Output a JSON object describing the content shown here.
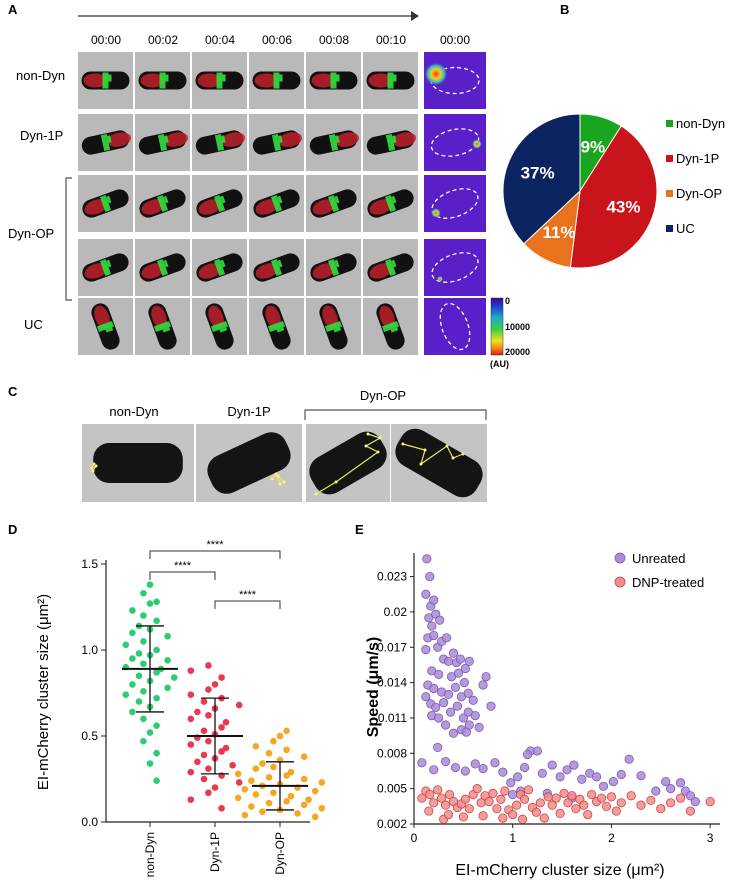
{
  "panels": {
    "a": "A",
    "b": "B",
    "c": "C",
    "d": "D",
    "e": "E"
  },
  "panel_a": {
    "timepoints": [
      "00:00",
      "00:02",
      "00:04",
      "00:06",
      "00:08",
      "00:10"
    ],
    "heatmap_time": "00:00",
    "rows": [
      "non-Dyn",
      "Dyn-1P",
      "Dyn-OP",
      "UC"
    ],
    "colorbar_ticks": [
      "0",
      "10000",
      "20000"
    ],
    "colorbar_unit": "(AU)"
  },
  "panel_c": {
    "labels": [
      "non-Dyn",
      "Dyn-1P",
      "Dyn-OP"
    ]
  },
  "chart_data": [
    {
      "type": "pie",
      "id": "B",
      "slices": [
        {
          "label": "non-Dyn",
          "value": 9,
          "text": "9%",
          "color": "#1aa51f"
        },
        {
          "label": "Dyn-1P",
          "value": 43,
          "text": "43%",
          "color": "#c8141a"
        },
        {
          "label": "Dyn-OP",
          "value": 11,
          "text": "11%",
          "color": "#e8731c"
        },
        {
          "label": "UC",
          "value": 37,
          "text": "37%",
          "color": "#0b2361"
        }
      ]
    },
    {
      "type": "scatter",
      "id": "D",
      "ylabel": "EI-mCherry cluster size (μm²)",
      "ylim": [
        0,
        1.5
      ],
      "yticks": [
        "0.0",
        "0.5",
        "1.0",
        "1.5"
      ],
      "categories": [
        "non-Dyn",
        "Dyn-1P",
        "Dyn-OP"
      ],
      "colors": [
        "#2ecc71",
        "#e8394d",
        "#f5a623"
      ],
      "series": [
        {
          "name": "non-Dyn",
          "mean": 0.89,
          "sd": 0.25,
          "values": [
            1.38,
            1.33,
            1.28,
            1.27,
            1.23,
            1.2,
            1.17,
            1.14,
            1.12,
            1.1,
            1.08,
            1.05,
            1.03,
            1.0,
            0.98,
            0.97,
            0.95,
            0.94,
            0.92,
            0.9,
            0.89,
            0.87,
            0.85,
            0.84,
            0.82,
            0.8,
            0.78,
            0.76,
            0.74,
            0.72,
            0.7,
            0.67,
            0.64,
            0.6,
            0.56,
            0.52,
            0.47,
            0.4,
            0.34,
            0.24
          ]
        },
        {
          "name": "Dyn-1P",
          "mean": 0.5,
          "sd": 0.22,
          "values": [
            0.91,
            0.88,
            0.84,
            0.8,
            0.77,
            0.74,
            0.72,
            0.7,
            0.68,
            0.66,
            0.64,
            0.62,
            0.6,
            0.58,
            0.55,
            0.53,
            0.51,
            0.49,
            0.47,
            0.45,
            0.43,
            0.41,
            0.39,
            0.37,
            0.35,
            0.33,
            0.31,
            0.29,
            0.27,
            0.25,
            0.23,
            0.2,
            0.17,
            0.13,
            0.08
          ]
        },
        {
          "name": "Dyn-OP",
          "mean": 0.21,
          "sd": 0.14,
          "values": [
            0.53,
            0.5,
            0.47,
            0.44,
            0.42,
            0.4,
            0.38,
            0.36,
            0.34,
            0.32,
            0.31,
            0.29,
            0.28,
            0.27,
            0.26,
            0.25,
            0.24,
            0.23,
            0.22,
            0.21,
            0.2,
            0.19,
            0.18,
            0.17,
            0.16,
            0.15,
            0.14,
            0.13,
            0.12,
            0.11,
            0.1,
            0.09,
            0.08,
            0.07,
            0.06,
            0.05,
            0.04,
            0.03
          ]
        }
      ],
      "significance": [
        {
          "from": 0,
          "to": 2,
          "label": "****"
        },
        {
          "from": 0,
          "to": 1,
          "label": "****"
        },
        {
          "from": 1,
          "to": 2,
          "label": "****"
        }
      ]
    },
    {
      "type": "scatter",
      "id": "E",
      "xlabel": "EI-mCherry cluster size (μm²)",
      "ylabel": "Speed (μm/s)",
      "xlim": [
        0,
        3.1
      ],
      "ylim": [
        0.002,
        0.025
      ],
      "xticks": [
        "0",
        "1",
        "2",
        "3"
      ],
      "yticks": [
        "0.002",
        "0.005",
        "0.008",
        "0.011",
        "0.014",
        "0.017",
        "0.02",
        "0.023"
      ],
      "series": [
        {
          "name": "Unreated",
          "color": "#a98ad6",
          "points": [
            [
              0.13,
              0.0245
            ],
            [
              0.16,
              0.023
            ],
            [
              0.12,
              0.0215
            ],
            [
              0.17,
              0.0205
            ],
            [
              0.2,
              0.021
            ],
            [
              0.15,
              0.0195
            ],
            [
              0.22,
              0.0198
            ],
            [
              0.18,
              0.0188
            ],
            [
              0.26,
              0.0193
            ],
            [
              0.14,
              0.0178
            ],
            [
              0.2,
              0.018
            ],
            [
              0.24,
              0.017
            ],
            [
              0.28,
              0.0175
            ],
            [
              0.33,
              0.0178
            ],
            [
              0.12,
              0.0168
            ],
            [
              0.3,
              0.016
            ],
            [
              0.35,
              0.0158
            ],
            [
              0.4,
              0.0165
            ],
            [
              0.43,
              0.0157
            ],
            [
              0.47,
              0.016
            ],
            [
              0.52,
              0.0152
            ],
            [
              0.56,
              0.0158
            ],
            [
              0.18,
              0.015
            ],
            [
              0.25,
              0.0147
            ],
            [
              0.38,
              0.0145
            ],
            [
              0.45,
              0.0148
            ],
            [
              0.51,
              0.014
            ],
            [
              0.14,
              0.0138
            ],
            [
              0.2,
              0.0135
            ],
            [
              0.28,
              0.0132
            ],
            [
              0.35,
              0.013
            ],
            [
              0.42,
              0.0136
            ],
            [
              0.48,
              0.0128
            ],
            [
              0.55,
              0.0131
            ],
            [
              0.6,
              0.0125
            ],
            [
              0.7,
              0.0138
            ],
            [
              0.73,
              0.0145
            ],
            [
              0.12,
              0.0128
            ],
            [
              0.17,
              0.0122
            ],
            [
              0.22,
              0.0119
            ],
            [
              0.3,
              0.0123
            ],
            [
              0.37,
              0.0115
            ],
            [
              0.44,
              0.012
            ],
            [
              0.5,
              0.011
            ],
            [
              0.55,
              0.0115
            ],
            [
              0.62,
              0.0112
            ],
            [
              0.78,
              0.012
            ],
            [
              0.66,
              0.0102
            ],
            [
              0.18,
              0.0112
            ],
            [
              0.25,
              0.011
            ],
            [
              0.32,
              0.0104
            ],
            [
              0.4,
              0.0097
            ],
            [
              0.48,
              0.01
            ],
            [
              0.53,
              0.0098
            ],
            [
              0.56,
              0.0104
            ],
            [
              0.24,
              0.0085
            ],
            [
              0.08,
              0.0072
            ],
            [
              0.2,
              0.0066
            ],
            [
              0.32,
              0.0073
            ],
            [
              0.42,
              0.0068
            ],
            [
              0.52,
              0.0065
            ],
            [
              0.62,
              0.0071
            ],
            [
              0.7,
              0.0067
            ],
            [
              0.82,
              0.0072
            ],
            [
              0.9,
              0.0064
            ],
            [
              0.98,
              0.0055
            ],
            [
              1.05,
              0.006
            ],
            [
              1.12,
              0.0068
            ],
            [
              1.18,
              0.0082
            ],
            [
              1.25,
              0.0082
            ],
            [
              1.3,
              0.0063
            ],
            [
              1.4,
              0.007
            ],
            [
              1.48,
              0.006
            ],
            [
              1.55,
              0.0066
            ],
            [
              1.62,
              0.007
            ],
            [
              1.7,
              0.0058
            ],
            [
              1.78,
              0.0063
            ],
            [
              1.85,
              0.006
            ],
            [
              1.92,
              0.0052
            ],
            [
              2.02,
              0.0056
            ],
            [
              2.1,
              0.0062
            ],
            [
              2.18,
              0.0075
            ],
            [
              2.3,
              0.0061
            ],
            [
              2.45,
              0.0048
            ],
            [
              2.55,
              0.0056
            ],
            [
              2.6,
              0.005
            ],
            [
              2.7,
              0.0055
            ],
            [
              2.75,
              0.0048
            ],
            [
              2.8,
              0.0044
            ],
            [
              2.85,
              0.0039
            ],
            [
              1.0,
              0.0045
            ],
            [
              1.08,
              0.0048
            ],
            [
              1.35,
              0.0046
            ],
            [
              1.6,
              0.0042
            ],
            [
              1.15,
              0.0079
            ]
          ]
        },
        {
          "name": "DNP-treated",
          "color": "#f28c8c",
          "points": [
            [
              0.08,
              0.0042
            ],
            [
              0.12,
              0.0048
            ],
            [
              0.16,
              0.0045
            ],
            [
              0.2,
              0.0038
            ],
            [
              0.24,
              0.0049
            ],
            [
              0.28,
              0.0042
            ],
            [
              0.32,
              0.0036
            ],
            [
              0.36,
              0.0045
            ],
            [
              0.4,
              0.0039
            ],
            [
              0.44,
              0.0034
            ],
            [
              0.48,
              0.0037
            ],
            [
              0.52,
              0.0041
            ],
            [
              0.56,
              0.0033
            ],
            [
              0.6,
              0.0045
            ],
            [
              0.64,
              0.005
            ],
            [
              0.68,
              0.0038
            ],
            [
              0.72,
              0.0044
            ],
            [
              0.76,
              0.0039
            ],
            [
              0.8,
              0.0046
            ],
            [
              0.84,
              0.0033
            ],
            [
              0.88,
              0.0041
            ],
            [
              0.92,
              0.0048
            ],
            [
              0.96,
              0.0032
            ],
            [
              1.0,
              0.0028
            ],
            [
              1.04,
              0.0036
            ],
            [
              1.08,
              0.0045
            ],
            [
              1.12,
              0.0041
            ],
            [
              1.16,
              0.0049
            ],
            [
              1.2,
              0.0034
            ],
            [
              1.24,
              0.003
            ],
            [
              1.28,
              0.0038
            ],
            [
              1.32,
              0.0025
            ],
            [
              1.36,
              0.0043
            ],
            [
              1.4,
              0.0036
            ],
            [
              1.44,
              0.0042
            ],
            [
              1.48,
              0.0029
            ],
            [
              1.52,
              0.0046
            ],
            [
              1.56,
              0.0038
            ],
            [
              1.6,
              0.0044
            ],
            [
              1.64,
              0.0033
            ],
            [
              1.68,
              0.0041
            ],
            [
              1.72,
              0.0036
            ],
            [
              1.76,
              0.0028
            ],
            [
              1.8,
              0.0045
            ],
            [
              1.85,
              0.0039
            ],
            [
              1.9,
              0.0042
            ],
            [
              1.95,
              0.0035
            ],
            [
              2.0,
              0.0043
            ],
            [
              2.05,
              0.0031
            ],
            [
              2.1,
              0.0038
            ],
            [
              2.2,
              0.0044
            ],
            [
              2.3,
              0.0036
            ],
            [
              2.4,
              0.004
            ],
            [
              2.5,
              0.0033
            ],
            [
              2.6,
              0.0038
            ],
            [
              2.7,
              0.0042
            ],
            [
              2.8,
              0.0031
            ],
            [
              3.0,
              0.0039
            ],
            [
              0.3,
              0.0024
            ],
            [
              0.5,
              0.0026
            ],
            [
              0.7,
              0.0027
            ],
            [
              0.9,
              0.0025
            ],
            [
              1.1,
              0.0024
            ],
            [
              0.15,
              0.0031
            ],
            [
              0.35,
              0.0028
            ]
          ]
        }
      ]
    }
  ]
}
